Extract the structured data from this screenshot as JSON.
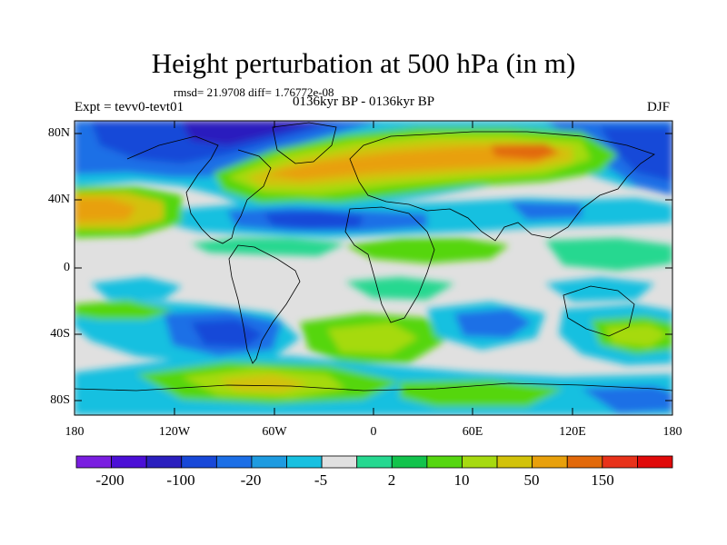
{
  "plot": {
    "title": "Height perturbation at 500 hPa (in m)",
    "stats": "rmsd= 21.9708 diff= 1.76772e-08",
    "experiment": "Expt = tevv0-tevt01",
    "period": "0136kyr BP - 0136kyr BP",
    "season": "DJF"
  },
  "axes": {
    "lat_labels": [
      "80N",
      "40N",
      "0",
      "40S",
      "80S"
    ],
    "lon_labels": [
      "180",
      "120W",
      "60W",
      "0",
      "60E",
      "120E",
      "180"
    ]
  },
  "colorbar": {
    "labels": [
      "-200",
      "-100",
      "-20",
      "-5",
      "2",
      "10",
      "50",
      "150"
    ],
    "colors": [
      "#7a1ee0",
      "#4b0fd6",
      "#2b1fbe",
      "#1848d8",
      "#1c6fe6",
      "#1e9be0",
      "#18c0e0",
      "#e0e0e0",
      "#26d890",
      "#12c34c",
      "#55d610",
      "#a6da10",
      "#d2c20a",
      "#e8a00c",
      "#e2690a",
      "#e8321a",
      "#e00a0a"
    ]
  },
  "chart_data": {
    "type": "heatmap",
    "title": "Height perturbation at 500 hPa (in m)",
    "subtitle": "0136kyr BP - 0136kyr BP",
    "annotations": [
      "rmsd= 21.9708 diff= 1.76772e-08",
      "Expt = tevv0-tevt01",
      "DJF"
    ],
    "x_ticks": [
      "180",
      "120W",
      "60W",
      "0",
      "60E",
      "120E",
      "180"
    ],
    "y_ticks": [
      "80N",
      "40N",
      "0",
      "40S",
      "80S"
    ],
    "xlim": [
      -180,
      180
    ],
    "ylim": [
      -90,
      90
    ],
    "colorbar_levels": [
      "-200",
      "-100",
      "-20",
      "-5",
      "2",
      "10",
      "50",
      "150"
    ],
    "field_regions": [
      {
        "lon": -150,
        "lat": 70,
        "value": -50
      },
      {
        "lon": -60,
        "lat": 70,
        "value": -100
      },
      {
        "lon": -10,
        "lat": 60,
        "value": 50
      },
      {
        "lon": 40,
        "lat": 60,
        "value": 50
      },
      {
        "lon": 90,
        "lat": 55,
        "value": 100
      },
      {
        "lon": 160,
        "lat": 60,
        "value": -100
      },
      {
        "lon": -175,
        "lat": 35,
        "value": 50
      },
      {
        "lon": -110,
        "lat": 35,
        "value": -20
      },
      {
        "lon": -60,
        "lat": 32,
        "value": -50
      },
      {
        "lon": 15,
        "lat": 30,
        "value": -20
      },
      {
        "lon": 80,
        "lat": 30,
        "value": -20
      },
      {
        "lon": 140,
        "lat": 40,
        "value": -20
      },
      {
        "lon": -50,
        "lat": 15,
        "value": 10
      },
      {
        "lon": 40,
        "lat": 10,
        "value": 10
      },
      {
        "lon": 140,
        "lat": 12,
        "value": 10
      },
      {
        "lon": -140,
        "lat": -20,
        "value": 5
      },
      {
        "lon": -100,
        "lat": -50,
        "value": -50
      },
      {
        "lon": -20,
        "lat": -40,
        "value": 10
      },
      {
        "lon": 70,
        "lat": -40,
        "value": -20
      },
      {
        "lon": 150,
        "lat": -45,
        "value": 20
      },
      {
        "lon": -80,
        "lat": -75,
        "value": 20
      },
      {
        "lon": 50,
        "lat": -75,
        "value": 10
      }
    ]
  }
}
